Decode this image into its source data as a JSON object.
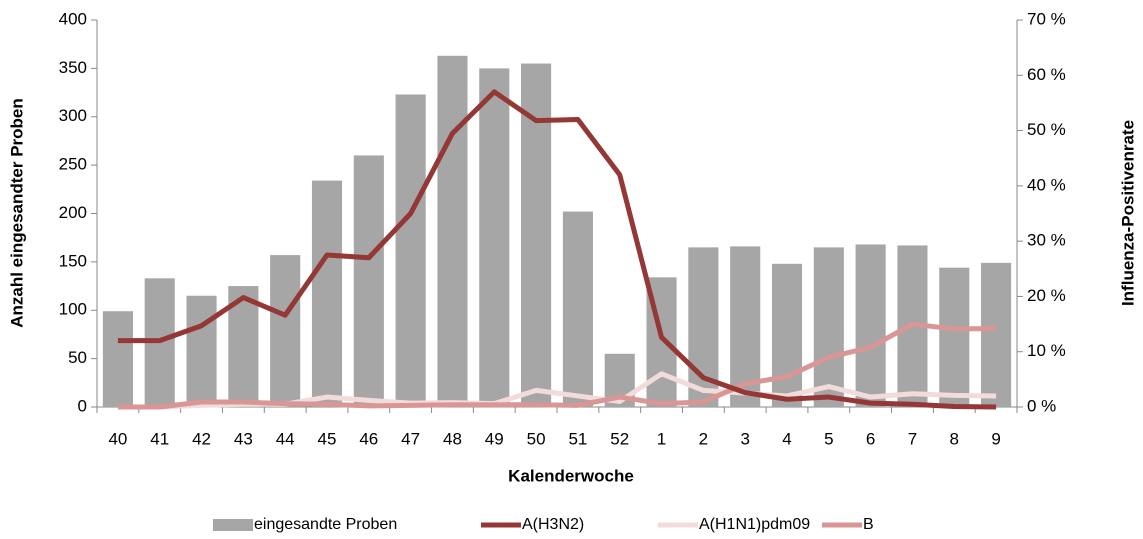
{
  "chart_data": {
    "type": "bar",
    "x_label": "Kalenderwoche",
    "y_label": "Anzahl eingesandter Proben",
    "y2_label": "Influenza-Positivenrate",
    "categories": [
      "40",
      "41",
      "42",
      "43",
      "44",
      "45",
      "46",
      "47",
      "48",
      "49",
      "50",
      "51",
      "52",
      "1",
      "2",
      "3",
      "4",
      "5",
      "6",
      "7",
      "8",
      "9"
    ],
    "series": [
      {
        "name": "eingesandte Proben",
        "type": "bar",
        "color": "#a6a6a6",
        "values": [
          99,
          133,
          115,
          125,
          157,
          234,
          260,
          323,
          363,
          350,
          355,
          202,
          55,
          134,
          165,
          166,
          148,
          165,
          168,
          167,
          144,
          149
        ]
      },
      {
        "name": "A(H3N2)",
        "type": "line",
        "axis": "y2",
        "color": "#953735",
        "values": [
          12,
          12,
          14.7,
          19.8,
          16.6,
          27.5,
          27,
          35,
          49.5,
          57,
          51.8,
          52,
          42,
          12.6,
          5.3,
          2.6,
          1.4,
          1.8,
          0.7,
          0.5,
          0.1,
          0
        ]
      },
      {
        "name": "A(H1N1)pdm09",
        "type": "line",
        "axis": "y2",
        "color": "#f2dcdb",
        "values": [
          0,
          0,
          0.3,
          0.5,
          0.5,
          1.8,
          1.2,
          0.7,
          0.8,
          0.6,
          3,
          2,
          1,
          6,
          3,
          2.5,
          2,
          3.7,
          1.8,
          2.4,
          2.1,
          2
        ]
      },
      {
        "name": "B",
        "type": "line",
        "axis": "y2",
        "color": "#d99694",
        "values": [
          0,
          0,
          0.9,
          0.9,
          0.6,
          0.5,
          0.2,
          0.3,
          0.4,
          0.4,
          0.4,
          0.3,
          1.8,
          0.6,
          0.9,
          4.2,
          5.5,
          9,
          10.8,
          15,
          14.1,
          14.2
        ]
      }
    ],
    "ylim": [
      0,
      400
    ],
    "yticks": [
      0,
      50,
      100,
      150,
      200,
      250,
      300,
      350,
      400
    ],
    "y2lim": [
      0,
      70
    ],
    "y2ticks": [
      {
        "value": 0,
        "label": "0 %"
      },
      {
        "value": 10,
        "label": "10 %"
      },
      {
        "value": 20,
        "label": "20 %"
      },
      {
        "value": 30,
        "label": "30 %"
      },
      {
        "value": 40,
        "label": "40 %"
      },
      {
        "value": 50,
        "label": "50 %"
      },
      {
        "value": 60,
        "label": "60 %"
      },
      {
        "value": 70,
        "label": "70 %"
      }
    ],
    "legend": "bottom",
    "grid": false
  }
}
